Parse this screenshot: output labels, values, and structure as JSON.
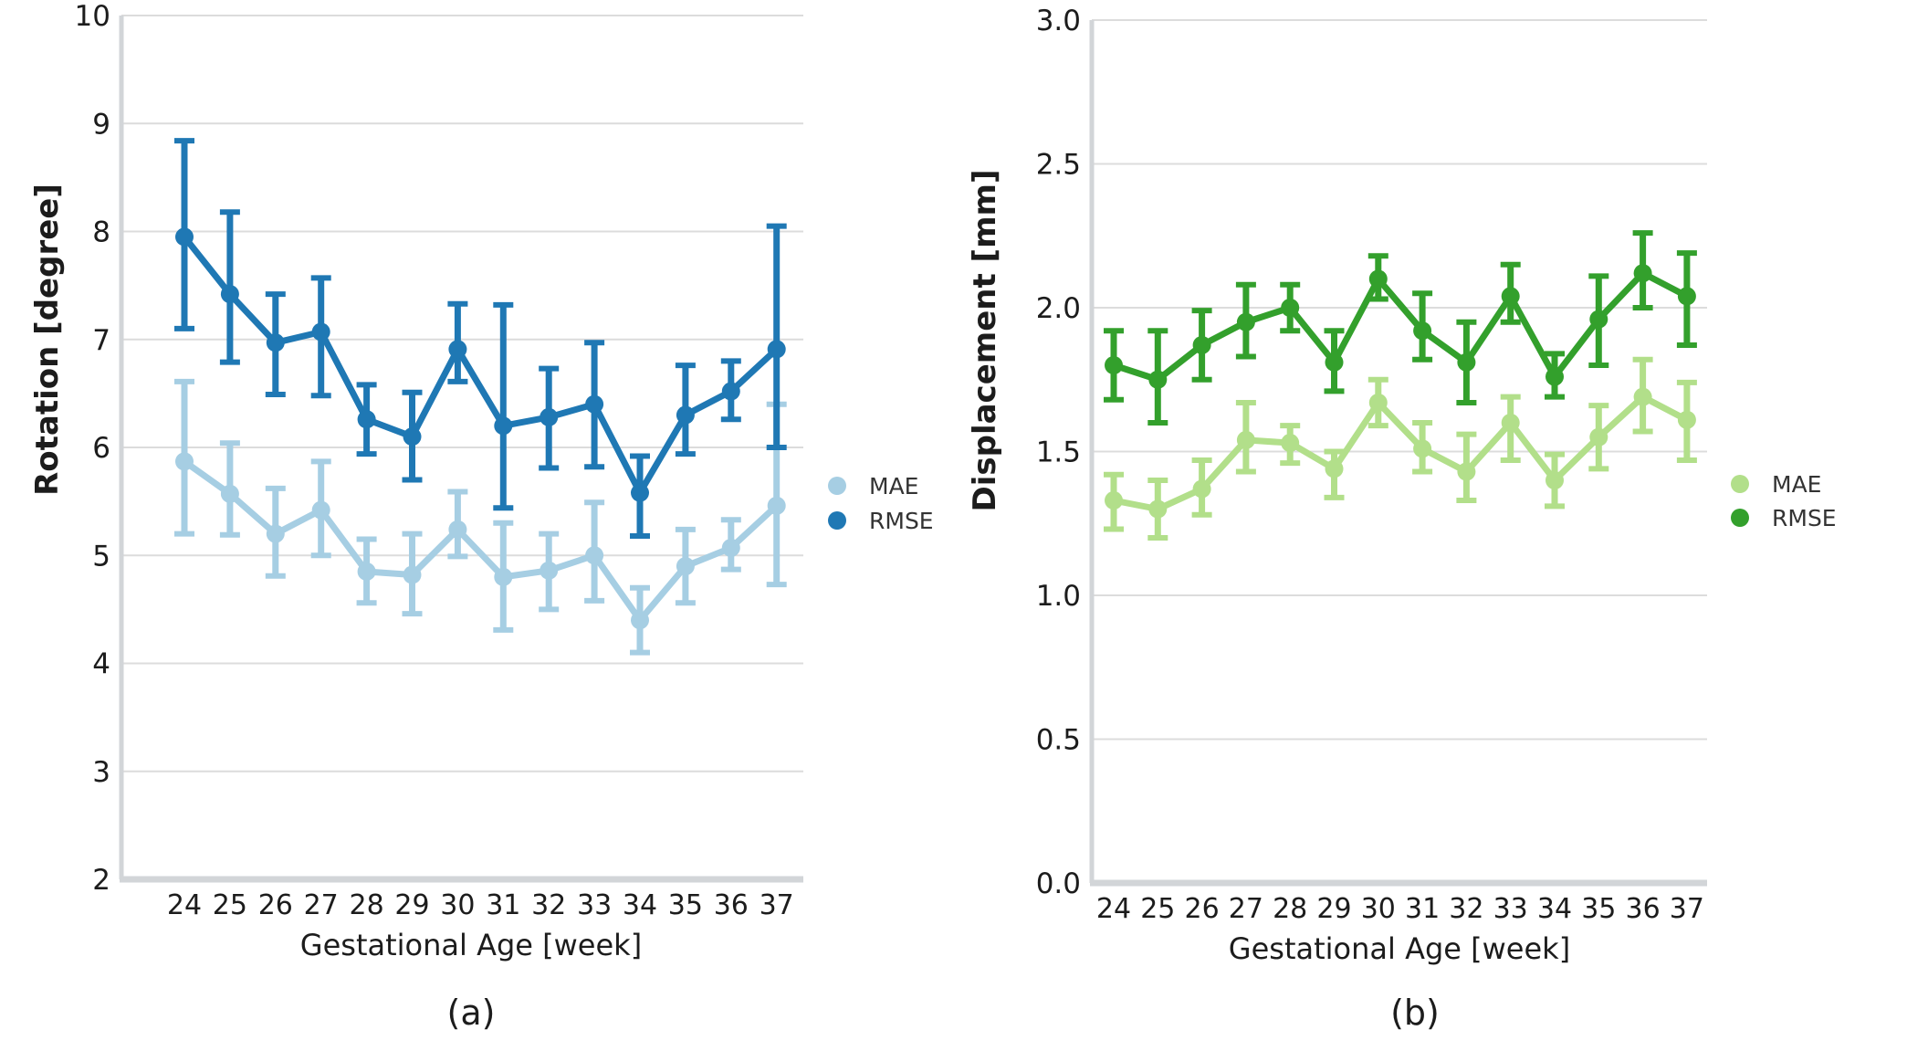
{
  "figure": {
    "background": "#ffffff",
    "grid_color": "#dcdcdc",
    "spine_color": "#d2d5d8",
    "text_color": "#1c1c1c",
    "legend_text_color": "#333333"
  },
  "chart_data": [
    {
      "type": "line",
      "caption": "(a)",
      "xlabel": "Gestational Age [week]",
      "ylabel": "Rotation [degree]",
      "categories": [
        24,
        25,
        26,
        27,
        28,
        29,
        30,
        31,
        32,
        33,
        34,
        35,
        36,
        37
      ],
      "ylim": [
        2,
        10
      ],
      "y_ticks": [
        {
          "v": 2,
          "label": "2"
        },
        {
          "v": 3,
          "label": "3"
        },
        {
          "v": 4,
          "label": "4"
        },
        {
          "v": 5,
          "label": "5"
        },
        {
          "v": 6,
          "label": "6"
        },
        {
          "v": 7,
          "label": "7"
        },
        {
          "v": 8,
          "label": "8"
        },
        {
          "v": 9,
          "label": "9"
        },
        {
          "v": 10,
          "label": "10"
        }
      ],
      "grid": true,
      "legend_position": "right-of-plot",
      "series": [
        {
          "name": "MAE",
          "color": "#a6cee3",
          "values": [
            5.87,
            5.57,
            5.2,
            5.42,
            4.85,
            4.82,
            5.24,
            4.8,
            4.86,
            5.0,
            4.4,
            4.9,
            5.07,
            5.46
          ],
          "err_min": [
            5.2,
            5.19,
            4.81,
            5.0,
            4.56,
            4.46,
            4.99,
            4.31,
            4.5,
            4.58,
            4.1,
            4.56,
            4.87,
            4.73
          ],
          "err_max": [
            6.61,
            6.04,
            5.62,
            5.87,
            5.15,
            5.2,
            5.59,
            5.3,
            5.2,
            5.49,
            4.7,
            5.24,
            5.33,
            6.4
          ]
        },
        {
          "name": "RMSE",
          "color": "#1f78b4",
          "values": [
            7.95,
            7.42,
            6.97,
            7.07,
            6.26,
            6.1,
            6.91,
            6.2,
            6.28,
            6.4,
            5.58,
            6.3,
            6.52,
            6.91
          ],
          "err_min": [
            7.1,
            6.79,
            6.49,
            6.48,
            5.94,
            5.7,
            6.61,
            5.44,
            5.81,
            5.82,
            5.18,
            5.94,
            6.26,
            6.0
          ],
          "err_max": [
            8.84,
            8.18,
            7.42,
            7.57,
            6.58,
            6.51,
            7.33,
            7.32,
            6.73,
            6.97,
            5.92,
            6.76,
            6.8,
            8.05
          ]
        }
      ]
    },
    {
      "type": "line",
      "caption": "(b)",
      "xlabel": "Gestational Age [week]",
      "ylabel": "Displacement [mm]",
      "categories": [
        24,
        25,
        26,
        27,
        28,
        29,
        30,
        31,
        32,
        33,
        34,
        35,
        36,
        37
      ],
      "ylim": [
        0,
        3
      ],
      "y_ticks": [
        {
          "v": 0.0,
          "label": "0.0"
        },
        {
          "v": 0.5,
          "label": "0.5"
        },
        {
          "v": 1.0,
          "label": "1.0"
        },
        {
          "v": 1.5,
          "label": "1.5"
        },
        {
          "v": 2.0,
          "label": "2.0"
        },
        {
          "v": 2.5,
          "label": "2.5"
        },
        {
          "v": 3.0,
          "label": "3.0"
        }
      ],
      "grid": true,
      "legend_position": "right-of-plot",
      "series": [
        {
          "name": "MAE",
          "color": "#b2df8a",
          "values": [
            1.33,
            1.3,
            1.37,
            1.54,
            1.53,
            1.44,
            1.67,
            1.51,
            1.43,
            1.6,
            1.4,
            1.55,
            1.69,
            1.61
          ],
          "err_min": [
            1.23,
            1.2,
            1.28,
            1.43,
            1.46,
            1.34,
            1.59,
            1.43,
            1.33,
            1.47,
            1.31,
            1.44,
            1.57,
            1.47
          ],
          "err_max": [
            1.42,
            1.4,
            1.47,
            1.67,
            1.59,
            1.5,
            1.75,
            1.6,
            1.56,
            1.69,
            1.49,
            1.66,
            1.82,
            1.74
          ]
        },
        {
          "name": "RMSE",
          "color": "#33a02c",
          "values": [
            1.8,
            1.75,
            1.87,
            1.95,
            2.0,
            1.81,
            2.1,
            1.92,
            1.81,
            2.04,
            1.76,
            1.96,
            2.12,
            2.04
          ],
          "err_min": [
            1.68,
            1.6,
            1.75,
            1.83,
            1.92,
            1.71,
            2.03,
            1.82,
            1.67,
            1.95,
            1.69,
            1.8,
            2.0,
            1.87
          ],
          "err_max": [
            1.92,
            1.92,
            1.99,
            2.08,
            2.08,
            1.92,
            2.18,
            2.05,
            1.95,
            2.15,
            1.84,
            2.11,
            2.26,
            2.19
          ]
        }
      ]
    }
  ]
}
